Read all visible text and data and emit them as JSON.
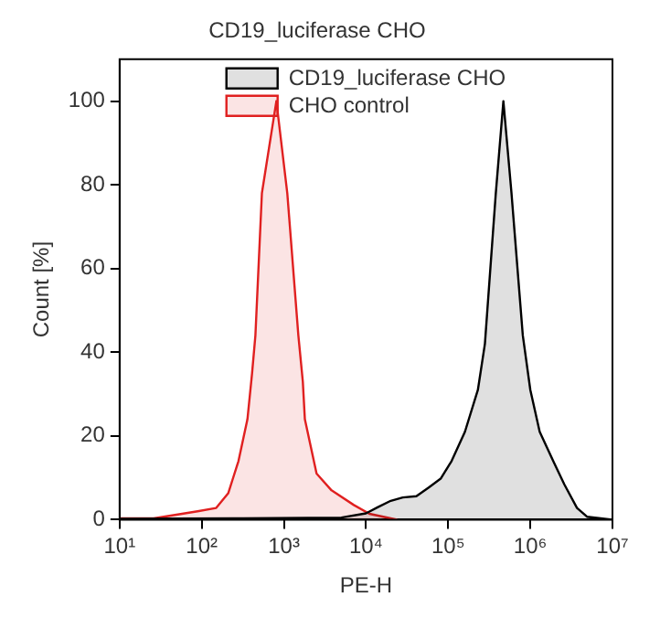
{
  "chart_data": {
    "type": "area",
    "title": "CD19_luciferase CHO",
    "xlabel": "PE-H",
    "ylabel": "Count [%]",
    "log": "x",
    "legend": "top",
    "xlim": [
      10,
      10000000
    ],
    "xticks": [
      {
        "value": 10,
        "label": "10¹"
      },
      {
        "value": 100,
        "label": "10²"
      },
      {
        "value": 1000,
        "label": "10³"
      },
      {
        "value": 10000,
        "label": "10⁴"
      },
      {
        "value": 100000,
        "label": "10⁵"
      },
      {
        "value": 1000000,
        "label": "10⁶"
      },
      {
        "value": 10000000,
        "label": "10⁷"
      }
    ],
    "ylim": [
      0,
      110
    ],
    "yticks": [
      0,
      20,
      40,
      60,
      80,
      100
    ],
    "series": [
      {
        "name": "CD19_luciferase CHO",
        "color": "#000000",
        "x": [
          10,
          320,
          5000,
          10000,
          14000,
          20000,
          28000,
          41000,
          58000,
          81000,
          110000,
          160000,
          230000,
          280000,
          380000,
          470000,
          590000,
          810000,
          1000000,
          1300000,
          1900000,
          2600000,
          3700000,
          4900000,
          7200000,
          10000000
        ],
        "values": [
          0.2,
          0.3,
          0.5,
          1.5,
          3,
          4.5,
          5.3,
          5.6,
          7.7,
          9.8,
          14,
          21,
          31,
          42,
          78,
          100,
          78,
          44,
          31,
          21,
          14,
          8.4,
          2.8,
          0.7,
          0.3,
          0
        ]
      },
      {
        "name": "CHO control",
        "color": "#e02020",
        "x": [
          10,
          26,
          89,
          150,
          210,
          280,
          360,
          410,
          450,
          540,
          810,
          1100,
          1500,
          1700,
          1800,
          2500,
          3800,
          7100,
          11000,
          20000,
          24000
        ],
        "values": [
          0.3,
          0.3,
          2,
          2.8,
          6.3,
          14,
          24,
          35,
          44,
          78,
          100,
          78,
          44,
          33,
          24,
          11,
          7,
          3.5,
          1.4,
          0.3,
          0
        ]
      }
    ]
  }
}
